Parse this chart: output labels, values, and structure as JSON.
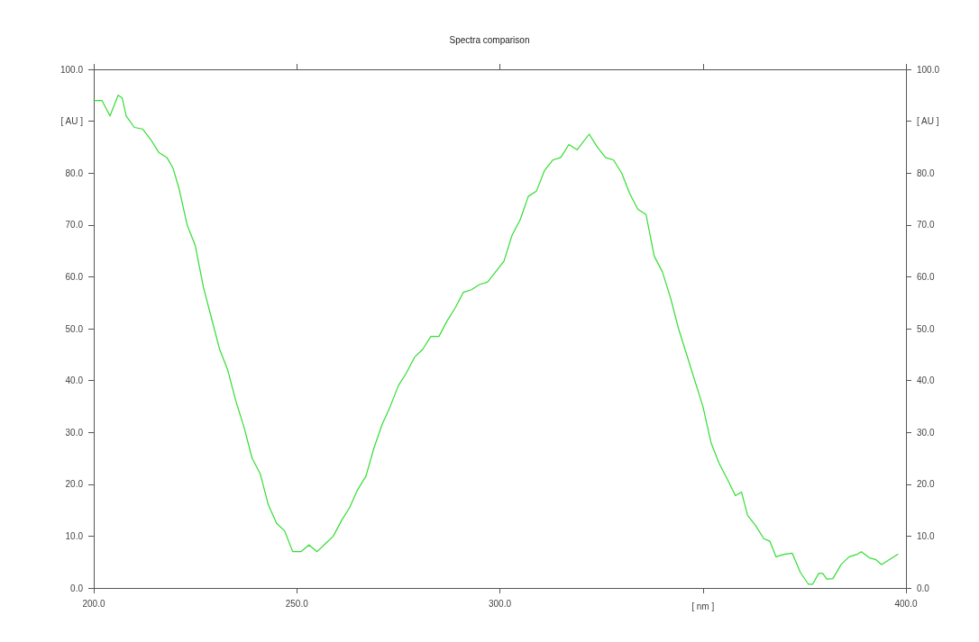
{
  "chart_data": {
    "type": "line",
    "title": "Spectra comparison",
    "xlabel": "[ nm ]",
    "ylabel": "[ AU ]",
    "y2label": "[ AU ]",
    "xlim": [
      200,
      400
    ],
    "xticks": [
      {
        "value": 200,
        "label": "200.0"
      },
      {
        "value": 250,
        "label": "250.0"
      },
      {
        "value": 300,
        "label": "300.0"
      },
      {
        "value": 350,
        "label": null
      },
      {
        "value": 400,
        "label": "400.0"
      }
    ],
    "ylim": [
      0,
      100
    ],
    "yticks": [
      {
        "value": 0,
        "label": "0.0"
      },
      {
        "value": 10,
        "label": "10.0"
      },
      {
        "value": 20,
        "label": "20.0"
      },
      {
        "value": 30,
        "label": "30.0"
      },
      {
        "value": 40,
        "label": "40.0"
      },
      {
        "value": 50,
        "label": "50.0"
      },
      {
        "value": 60,
        "label": "60.0"
      },
      {
        "value": 70,
        "label": "70.0"
      },
      {
        "value": 80,
        "label": "80.0"
      },
      {
        "value": 90,
        "label": null
      },
      {
        "value": 100,
        "label": "100.0"
      }
    ],
    "y2lim": [
      0,
      100
    ],
    "y2ticks": [
      {
        "value": 0,
        "label": "0.0"
      },
      {
        "value": 10,
        "label": "10.0"
      },
      {
        "value": 20,
        "label": "20.0"
      },
      {
        "value": 30,
        "label": "30.0"
      },
      {
        "value": 40,
        "label": "40.0"
      },
      {
        "value": 50,
        "label": "50.0"
      },
      {
        "value": 60,
        "label": "60.0"
      },
      {
        "value": 70,
        "label": "70.0"
      },
      {
        "value": 80,
        "label": "80.0"
      },
      {
        "value": 90,
        "label": null
      },
      {
        "value": 100,
        "label": "100.0"
      }
    ],
    "grid": false,
    "marker": "none",
    "line_style": "solid",
    "series": [
      {
        "color": "#33dd33",
        "x": [
          200,
          202,
          204,
          206,
          207,
          208,
          210,
          212,
          214,
          216,
          218,
          219.5,
          221,
          223,
          225,
          227,
          229,
          231,
          233,
          235,
          237,
          239,
          241,
          243,
          245,
          247,
          249,
          251,
          253,
          255,
          257,
          259,
          261,
          263,
          265,
          267,
          269,
          271,
          273,
          275,
          277,
          279,
          281,
          283,
          285,
          287,
          289,
          291,
          293,
          295,
          297,
          299,
          301,
          303,
          305,
          307,
          309,
          311,
          313,
          315,
          317,
          319,
          320,
          322,
          324,
          326,
          328,
          330,
          332,
          334,
          336,
          338,
          340,
          342,
          344,
          346,
          348,
          350,
          352,
          354,
          356,
          358,
          359.5,
          361,
          363,
          365,
          366.5,
          368,
          370,
          372,
          374,
          376,
          377,
          378.5,
          379.5,
          380.5,
          382,
          384,
          386,
          388,
          389,
          391,
          392.5,
          394,
          396,
          398
        ],
        "values": [
          94,
          94,
          91,
          95,
          94.5,
          91,
          88.8,
          88.5,
          86.5,
          84,
          83,
          81,
          77,
          70,
          66,
          58,
          52,
          46,
          42,
          36,
          31,
          25,
          22,
          16,
          12.5,
          11,
          7,
          7,
          8.3,
          7,
          8.5,
          10,
          13,
          15.5,
          19,
          21.5,
          27,
          31.5,
          35,
          39,
          41.5,
          44.5,
          46,
          48.5,
          48.5,
          51.5,
          54,
          57,
          57.5,
          58.5,
          59,
          61,
          63,
          68,
          71,
          75.5,
          76.5,
          80.5,
          82.5,
          83,
          85.5,
          84.5,
          85.5,
          87.5,
          85,
          83,
          82.5,
          80,
          76,
          73,
          72,
          64,
          61,
          56,
          50,
          45,
          40,
          35,
          28,
          24,
          21,
          17.8,
          18.5,
          14,
          12,
          9.5,
          9,
          6,
          6.5,
          6.7,
          3,
          0.7,
          0.7,
          2.8,
          2.8,
          1.7,
          1.8,
          4.5,
          6,
          6.5,
          7,
          5.8,
          5.5,
          4.5,
          5.5,
          6.5
        ]
      }
    ]
  }
}
